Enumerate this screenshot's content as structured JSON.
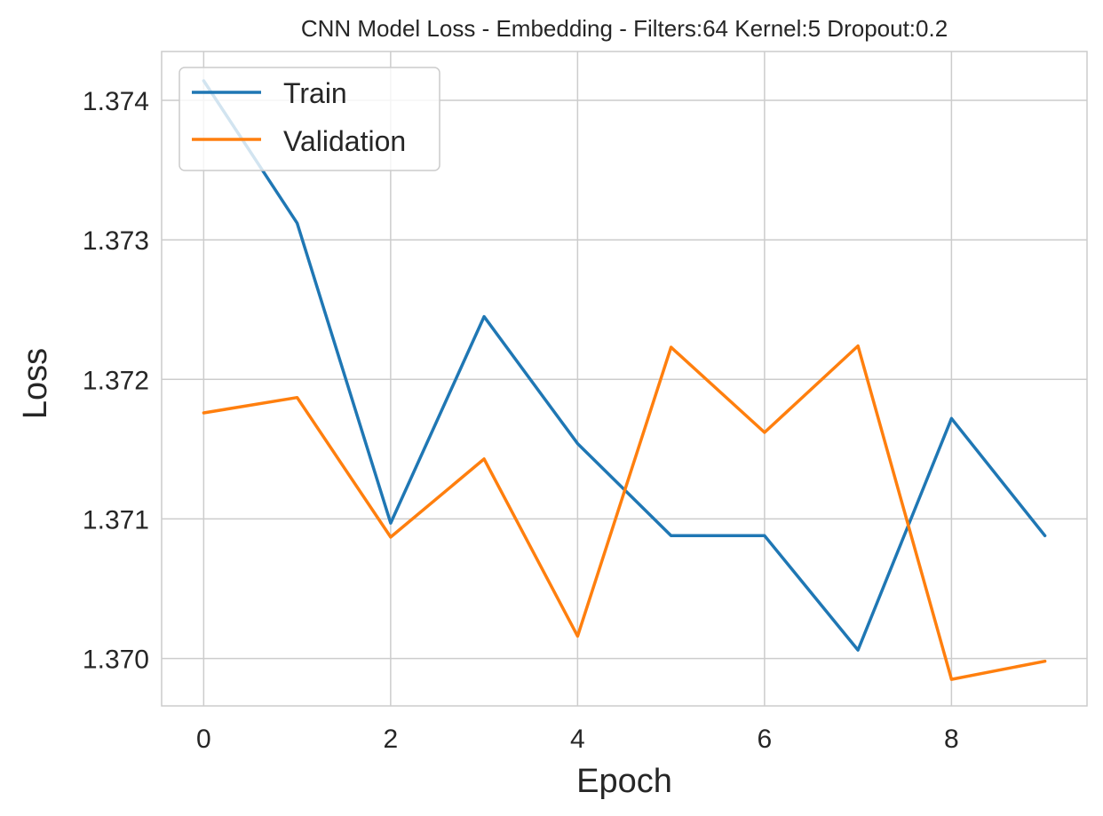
{
  "chart_data": {
    "type": "line",
    "title": "CNN Model Loss - Embedding - Filters:64 Kernel:5 Dropout:0.2",
    "xlabel": "Epoch",
    "ylabel": "Loss",
    "x": [
      0,
      1,
      2,
      3,
      4,
      5,
      6,
      7,
      8,
      9
    ],
    "xlim": [
      -0.45,
      9.45
    ],
    "ylim": [
      1.36966,
      1.37435
    ],
    "xticks": [
      0,
      2,
      4,
      6,
      8
    ],
    "xtick_labels": [
      "0",
      "2",
      "4",
      "6",
      "8"
    ],
    "yticks": [
      1.37,
      1.371,
      1.372,
      1.373,
      1.374
    ],
    "ytick_labels": [
      "1.370",
      "1.371",
      "1.372",
      "1.373",
      "1.374"
    ],
    "grid": true,
    "legend_position": "upper-left",
    "series": [
      {
        "name": "Train",
        "color": "#1f77b4",
        "values": [
          1.37414,
          1.37312,
          1.37097,
          1.37245,
          1.37154,
          1.37088,
          1.37088,
          1.37006,
          1.37172,
          1.37088
        ]
      },
      {
        "name": "Validation",
        "color": "#ff7f0e",
        "values": [
          1.37176,
          1.37187,
          1.37087,
          1.37143,
          1.37016,
          1.37223,
          1.37162,
          1.37224,
          1.36985,
          1.36998
        ]
      }
    ]
  }
}
